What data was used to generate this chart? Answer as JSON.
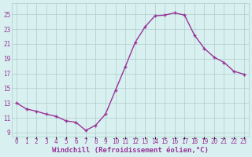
{
  "hours": [
    0,
    1,
    2,
    3,
    4,
    5,
    6,
    7,
    8,
    9,
    10,
    11,
    12,
    13,
    14,
    15,
    16,
    17,
    18,
    19,
    20,
    21,
    22,
    23
  ],
  "values": [
    13.0,
    12.2,
    11.9,
    11.5,
    11.2,
    10.6,
    10.4,
    9.3,
    10.0,
    11.5,
    14.7,
    17.9,
    21.2,
    23.3,
    24.8,
    24.9,
    25.2,
    24.9,
    22.2,
    20.4,
    19.2,
    18.5,
    17.3,
    16.9
  ],
  "line_color": "#993399",
  "marker": "+",
  "marker_size": 3,
  "bg_color": "#d8f0f0",
  "grid_color": "#b0cccc",
  "xlabel": "Windchill (Refroidissement éolien,°C)",
  "yticks": [
    9,
    11,
    13,
    15,
    17,
    19,
    21,
    23,
    25
  ],
  "xtick_labels": [
    "0",
    "1",
    "2",
    "3",
    "4",
    "5",
    "6",
    "7",
    "8",
    "9",
    "10",
    "11",
    "12",
    "13",
    "14",
    "15",
    "16",
    "17",
    "18",
    "19",
    "20",
    "21",
    "22",
    "23"
  ],
  "ylim": [
    8.5,
    26.5
  ],
  "xlim": [
    -0.5,
    23.5
  ],
  "xlabel_color": "#993399",
  "tick_color": "#993399",
  "xlabel_fontsize": 6.5,
  "tick_fontsize": 5.5,
  "linewidth": 1.0,
  "markeredgewidth": 1.0
}
